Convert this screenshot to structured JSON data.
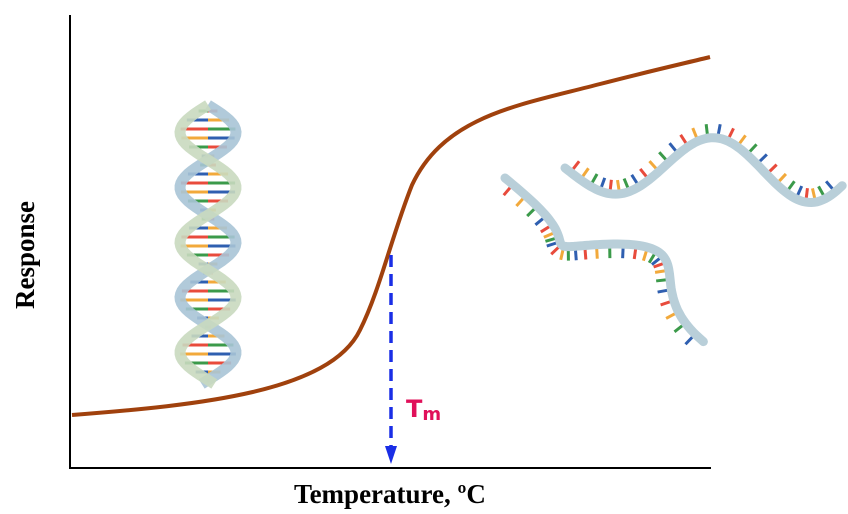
{
  "axes": {
    "y_label": "Response",
    "x_label": "Temperature, ºC"
  },
  "annotation": {
    "main": "T",
    "sub": "m"
  }
}
